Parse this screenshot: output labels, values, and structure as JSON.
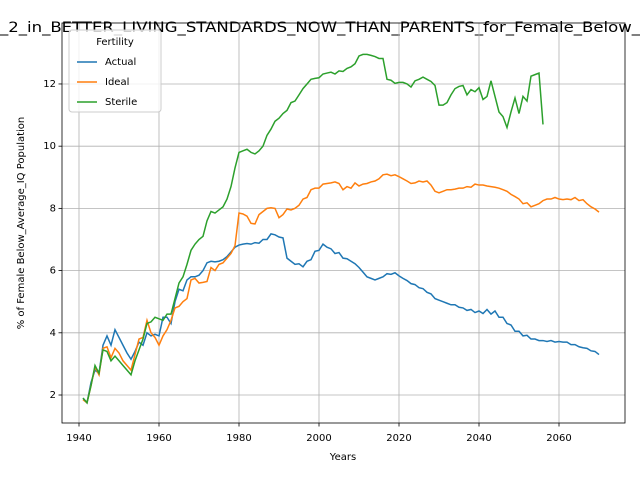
{
  "chart_data": {
    "type": "line",
    "title": "_2_in_BETTER_LIVING_STANDARDS_NOW_THAN_PARENTS_for_Female_Below_",
    "x_label": "Years",
    "y_label": "% of Female Below_Average_IQ Population",
    "legend_title": "Fertility",
    "legend": "upper left",
    "grid": true,
    "xlim": [
      1935.75,
      2076.5
    ],
    "ylim": [
      1.1,
      13.96
    ],
    "xticks": [
      1940,
      1960,
      1980,
      2000,
      2020,
      2040,
      2060
    ],
    "yticks": [
      2,
      4,
      6,
      8,
      10,
      12
    ],
    "x": [
      1941,
      1942,
      1943,
      1944,
      1945,
      1946,
      1947,
      1948,
      1949,
      1950,
      1951,
      1952,
      1953,
      1954,
      1955,
      1956,
      1957,
      1958,
      1959,
      1960,
      1961,
      1962,
      1963,
      1964,
      1965,
      1966,
      1967,
      1968,
      1969,
      1970,
      1971,
      1972,
      1973,
      1974,
      1975,
      1976,
      1977,
      1978,
      1979,
      1980,
      1981,
      1982,
      1983,
      1984,
      1985,
      1986,
      1987,
      1988,
      1989,
      1990,
      1991,
      1992,
      1993,
      1994,
      1995,
      1996,
      1997,
      1998,
      1999,
      2000,
      2001,
      2002,
      2003,
      2004,
      2005,
      2006,
      2007,
      2008,
      2009,
      2010,
      2011,
      2012,
      2013,
      2014,
      2015,
      2016,
      2017,
      2018,
      2019,
      2020,
      2021,
      2022,
      2023,
      2024,
      2025,
      2026,
      2027,
      2028,
      2029,
      2030,
      2031,
      2032,
      2033,
      2034,
      2035,
      2036,
      2037,
      2038,
      2039,
      2040,
      2041,
      2042,
      2043,
      2044,
      2045,
      2046,
      2047,
      2048,
      2049,
      2050,
      2051,
      2052,
      2053,
      2054,
      2055,
      2056,
      2057,
      2058,
      2059,
      2060,
      2061,
      2062,
      2063,
      2064,
      2065,
      2066,
      2067,
      2068,
      2069,
      2070
    ],
    "series": [
      {
        "name": "Actual",
        "color": "#1f77b4",
        "values": [
          1.9,
          1.75,
          2.4,
          2.8,
          2.7,
          3.6,
          3.9,
          3.6,
          4.1,
          3.85,
          3.6,
          3.35,
          3.15,
          3.4,
          3.7,
          3.6,
          4.0,
          3.9,
          3.95,
          3.9,
          4.5,
          4.5,
          4.3,
          5.0,
          5.4,
          5.35,
          5.7,
          5.8,
          5.8,
          5.85,
          6.0,
          6.25,
          6.3,
          6.28,
          6.3,
          6.35,
          6.45,
          6.6,
          6.75,
          6.82,
          6.85,
          6.87,
          6.85,
          6.9,
          6.88,
          7.0,
          7.0,
          7.18,
          7.15,
          7.08,
          7.05,
          6.4,
          6.3,
          6.2,
          6.22,
          6.12,
          6.3,
          6.35,
          6.62,
          6.65,
          6.85,
          6.75,
          6.7,
          6.55,
          6.58,
          6.4,
          6.38,
          6.3,
          6.22,
          6.1,
          5.95,
          5.8,
          5.75,
          5.7,
          5.75,
          5.8,
          5.9,
          5.88,
          5.93,
          5.83,
          5.75,
          5.68,
          5.58,
          5.55,
          5.45,
          5.42,
          5.3,
          5.25,
          5.1,
          5.05,
          5.0,
          4.95,
          4.9,
          4.9,
          4.82,
          4.8,
          4.72,
          4.75,
          4.65,
          4.7,
          4.62,
          4.75,
          4.6,
          4.7,
          4.5,
          4.5,
          4.3,
          4.25,
          4.05,
          4.05,
          3.9,
          3.92,
          3.8,
          3.8,
          3.75,
          3.75,
          3.72,
          3.75,
          3.7,
          3.72,
          3.7,
          3.7,
          3.62,
          3.62,
          3.55,
          3.52,
          3.5,
          3.42,
          3.4,
          3.3
        ]
      },
      {
        "name": "Ideal",
        "color": "#ff7f0e",
        "values": [
          1.85,
          1.75,
          2.3,
          2.9,
          2.65,
          3.5,
          3.55,
          3.2,
          3.5,
          3.35,
          3.1,
          2.95,
          2.8,
          3.3,
          3.8,
          3.85,
          4.4,
          4.0,
          3.85,
          3.6,
          3.9,
          4.1,
          4.4,
          4.8,
          4.85,
          5.0,
          5.1,
          5.7,
          5.75,
          5.6,
          5.62,
          5.65,
          6.1,
          6.0,
          6.2,
          6.25,
          6.4,
          6.55,
          6.8,
          7.85,
          7.82,
          7.75,
          7.52,
          7.5,
          7.8,
          7.9,
          8.0,
          8.02,
          8.0,
          7.7,
          7.8,
          7.98,
          7.95,
          8.0,
          8.1,
          8.3,
          8.35,
          8.6,
          8.65,
          8.65,
          8.78,
          8.8,
          8.82,
          8.85,
          8.8,
          8.6,
          8.7,
          8.65,
          8.82,
          8.72,
          8.78,
          8.8,
          8.85,
          8.88,
          8.95,
          9.08,
          9.1,
          9.05,
          9.08,
          9.02,
          8.95,
          8.88,
          8.8,
          8.82,
          8.88,
          8.85,
          8.88,
          8.75,
          8.55,
          8.5,
          8.55,
          8.6,
          8.6,
          8.62,
          8.65,
          8.65,
          8.7,
          8.68,
          8.78,
          8.75,
          8.75,
          8.72,
          8.7,
          8.68,
          8.65,
          8.6,
          8.55,
          8.45,
          8.38,
          8.3,
          8.15,
          8.18,
          8.05,
          8.1,
          8.15,
          8.25,
          8.3,
          8.3,
          8.35,
          8.3,
          8.28,
          8.3,
          8.28,
          8.35,
          8.25,
          8.28,
          8.15,
          8.05,
          7.98,
          7.88
        ]
      },
      {
        "name": "Sterile",
        "color": "#2ca02c",
        "values": [
          1.9,
          1.75,
          2.3,
          2.95,
          2.7,
          3.45,
          3.4,
          3.1,
          3.25,
          3.1,
          2.95,
          2.8,
          2.65,
          3.1,
          3.45,
          3.8,
          4.3,
          4.35,
          4.5,
          4.45,
          4.4,
          4.6,
          4.6,
          5.1,
          5.6,
          5.8,
          6.2,
          6.65,
          6.85,
          7.0,
          7.1,
          7.6,
          7.9,
          7.85,
          7.95,
          8.05,
          8.3,
          8.7,
          9.3,
          9.8,
          9.85,
          9.9,
          9.8,
          9.75,
          9.85,
          10.0,
          10.35,
          10.55,
          10.8,
          10.9,
          11.05,
          11.15,
          11.4,
          11.45,
          11.65,
          11.85,
          12.0,
          12.15,
          12.18,
          12.2,
          12.32,
          12.35,
          12.38,
          12.32,
          12.42,
          12.4,
          12.5,
          12.55,
          12.65,
          12.9,
          12.95,
          12.95,
          12.92,
          12.88,
          12.82,
          12.82,
          12.15,
          12.12,
          12.02,
          12.05,
          12.05,
          12.0,
          11.9,
          12.1,
          12.15,
          12.22,
          12.15,
          12.08,
          11.95,
          11.32,
          11.32,
          11.4,
          11.65,
          11.85,
          11.92,
          11.95,
          11.65,
          11.82,
          11.75,
          11.88,
          11.5,
          11.6,
          12.1,
          11.6,
          11.1,
          10.95,
          10.6,
          11.1,
          11.55,
          11.05,
          11.6,
          11.45,
          12.25,
          12.3,
          12.35,
          10.7,
          null,
          null,
          null,
          null,
          null,
          null,
          null,
          null,
          null,
          null,
          null,
          null,
          null,
          null
        ]
      }
    ]
  }
}
